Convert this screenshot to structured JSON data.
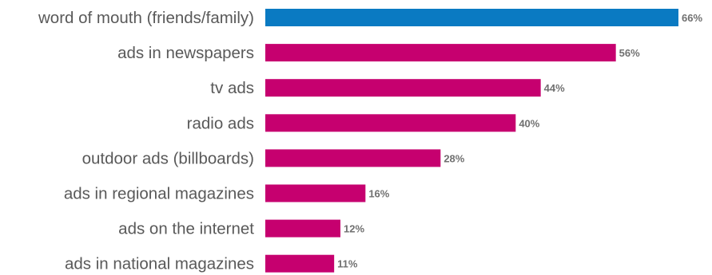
{
  "chart_data": {
    "type": "bar",
    "orientation": "horizontal",
    "categories": [
      "word of mouth (friends/family)",
      "ads in newspapers",
      "tv ads",
      "radio ads",
      "outdoor ads (billboards)",
      "ads in regional magazines",
      "ads on the internet",
      "ads in national magazines"
    ],
    "values": [
      66,
      56,
      44,
      40,
      28,
      16,
      12,
      11
    ],
    "value_labels": [
      "66%",
      "56%",
      "44%",
      "40%",
      "28%",
      "16%",
      "12%",
      "11%"
    ],
    "unit": "%",
    "highlight_index": 0,
    "colors": {
      "highlight": "#0a7ac2",
      "default": "#c6006f",
      "category_text": "#595959",
      "value_text": "#707070"
    },
    "xlim": [
      0,
      66
    ],
    "grid": false,
    "legend": "none"
  }
}
